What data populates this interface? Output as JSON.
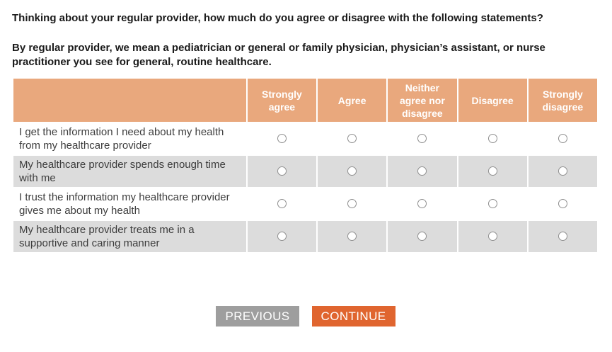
{
  "page": {
    "question": "Thinking about your regular provider, how much do you agree or disagree with the following statements?",
    "description": "By regular provider, we mean a pediatrician or general or family physician, physician’s assistant, or nurse practitioner you see for general, routine healthcare."
  },
  "matrix": {
    "columns": [
      "Strongly agree",
      "Agree",
      "Neither agree nor disagree",
      "Disagree",
      "Strongly disagree"
    ],
    "rows": [
      {
        "label": "I get the information I need about my health from my healthcare provider",
        "selected": null
      },
      {
        "label": "My healthcare provider spends enough time with me",
        "selected": null
      },
      {
        "label": "I trust the information my healthcare provider gives me about my health",
        "selected": null
      },
      {
        "label": "My healthcare provider treats me in a supportive and caring manner",
        "selected": null
      }
    ]
  },
  "buttons": {
    "previous": "PREVIOUS",
    "continue": "CONTINUE"
  },
  "colors": {
    "header_bg": "#e9a87d",
    "header_text": "#ffffff",
    "row_alt_bg": "#dcdcdc",
    "statement_text": "#3d3d3d",
    "question_text": "#1a1a1a",
    "previous_bg": "#9e9e9e",
    "continue_bg": "#e0652f",
    "button_text": "#ffffff",
    "radio_border": "#8f8f8f"
  }
}
